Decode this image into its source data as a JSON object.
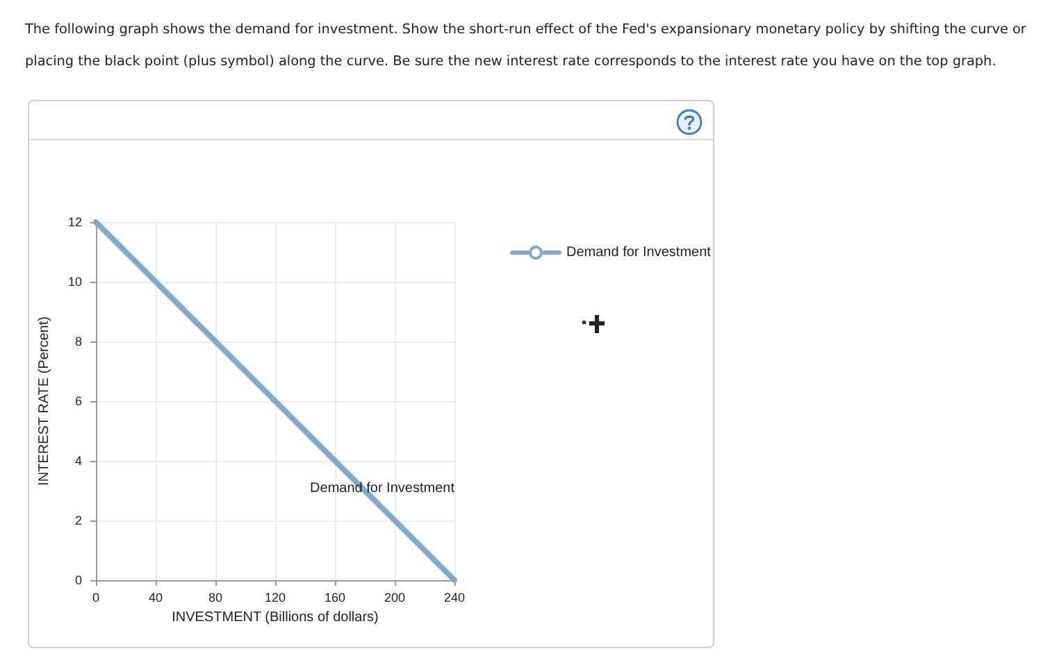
{
  "chart_data": {
    "type": "line",
    "title": "The following graph shows the demand for investment. Show the short-run effect of the Fed's expansionary monetary policy by shifting the curve or placing the black point (plus symbol) along the curve. Be sure the new interest rate corresponds to the interest rate you have on the top graph.",
    "xlabel": "INVESTMENT (Billions of dollars)",
    "ylabel": "INTEREST RATE (Percent)",
    "series": [
      {
        "name": "Demand for Investment",
        "color": "#80a8d4",
        "x": [
          0,
          240
        ],
        "values": [
          12,
          0
        ]
      }
    ],
    "xlim": [
      0,
      240
    ],
    "xticks": [
      0,
      40,
      80,
      120,
      160,
      200,
      240
    ],
    "ylim": [
      0,
      12
    ],
    "yticks": [
      0,
      2,
      4,
      6,
      8,
      10,
      12
    ],
    "grid": true,
    "legend": "right",
    "marker": "none",
    "line_style": "solid"
  }
}
